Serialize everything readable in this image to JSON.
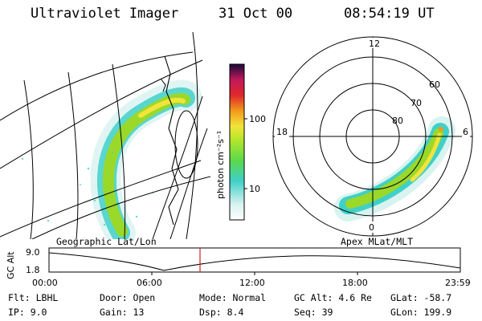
{
  "header": {
    "instrument": "Ultraviolet Imager",
    "date": "31 Oct 00",
    "time": "08:54:19 UT"
  },
  "colorbar": {
    "label": "photon cm⁻²s⁻¹",
    "tick_high": "100",
    "tick_low": "10"
  },
  "polar": {
    "mlt_top": "12",
    "mlt_left": "18",
    "mlt_right": "6",
    "mlt_bottom": "0",
    "lat_60": "60",
    "lat_70": "70",
    "lat_80": "80"
  },
  "labels": {
    "geo": "Geographic Lat/Lon",
    "apex": "Apex MLat/MLT"
  },
  "altitude_plot": {
    "axis_label": "GC Alt",
    "y_high": "9.0",
    "y_low": "1.8",
    "x_ticks": [
      "00:00",
      "06:00",
      "12:00",
      "18:00",
      "23:59"
    ]
  },
  "status": {
    "flt": "Flt: LBHL",
    "ip": "IP:  9.0",
    "door": "Door: Open",
    "gain": "Gain: 13",
    "mode": "Mode: Normal",
    "dsp": "Dsp:    8.4",
    "gcalt": "GC Alt: 4.6 Re",
    "seq": "Seq: 39",
    "glat": "GLat: -58.7",
    "glon": "GLon: 199.9"
  },
  "colors": {
    "marker": "#cc2222",
    "aurora_green": "#9ad82a",
    "aurora_cyan": "#3fd0c8",
    "aurora_yellow": "#f2e43a"
  }
}
